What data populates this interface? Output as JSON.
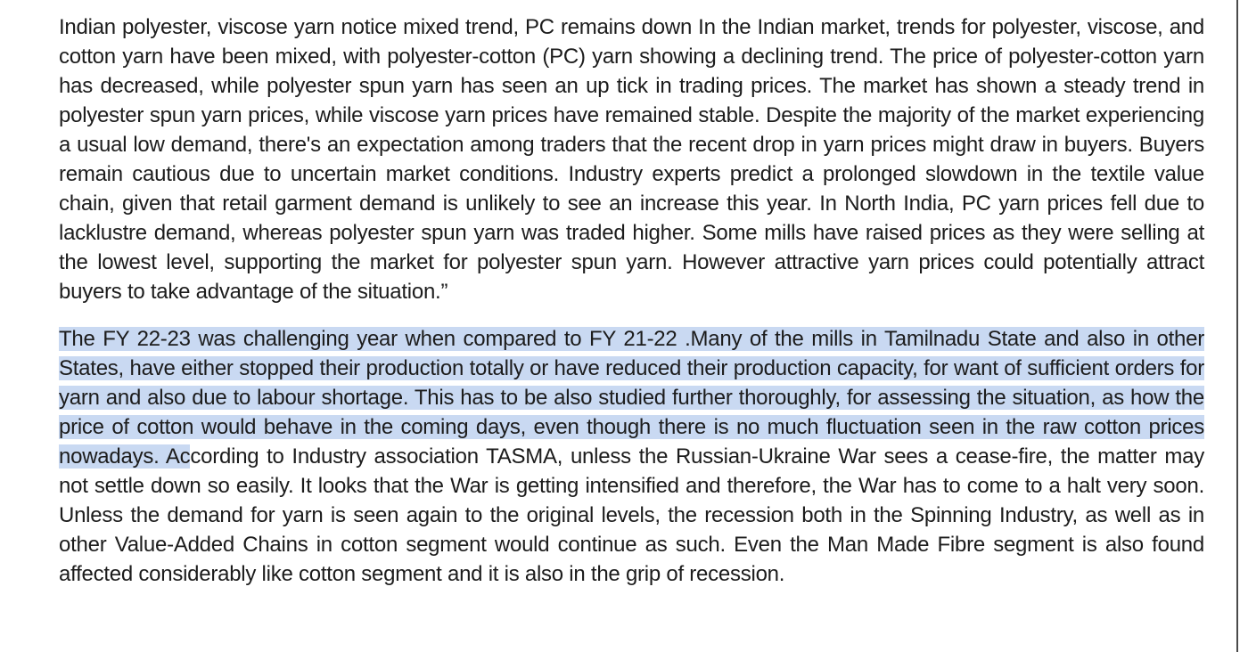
{
  "paragraphs": [
    {
      "text": "Indian polyester, viscose yarn notice mixed trend, PC remains down In the Indian market, trends for polyester, viscose, and cotton yarn have been mixed, with polyester-cotton (PC) yarn showing a declining trend. The price of polyester-cotton yarn has decreased, while polyester spun yarn has seen an up tick in trading prices. The market has shown a steady trend in polyester spun yarn prices, while viscose yarn prices have remained stable. Despite the majority of the market experiencing a usual low demand, there's an expectation among traders that the recent drop in yarn prices might draw in buyers. Buyers remain cautious due to uncertain market conditions. Industry experts predict a prolonged slowdown in the textile value chain, given that retail garment demand is unlikely to see an increase this year. In North India, PC yarn prices fell due to lacklustre demand, whereas polyester spun yarn was traded higher. Some mills have raised prices as they were selling at the lowest level, supporting the market for polyester spun yarn. However attractive yarn prices could potentially attract buyers to take advantage of the situation.”"
    },
    {
      "selected_text": "The FY 22-23 was challenging year when compared to FY 21-22 .Many of the mills in Tamilnadu State and also in other States, have either stopped their production totally or have reduced their production capacity, for want of sufficient orders for yarn and also due to labour shortage. This has to be also studied further thoroughly, for assessing the situation, as how the price of cotton would behave in the coming days, even though there is no much fluctuation seen in the raw cotton prices nowadays. Ac",
      "text": "cording to Industry association TASMA, unless the Russian-Ukraine War sees a cease-fire, the matter may not settle down so easily. It looks that the War is getting intensified and therefore, the War has to come to a halt very soon. Unless the demand for yarn is seen again to the original levels, the recession both in the Spinning Industry, as well as in other Value-Added Chains in cotton segment would continue as such. Even the Man Made Fibre segment is also found affected considerably like cotton segment and it is also in the grip of recession."
    }
  ]
}
